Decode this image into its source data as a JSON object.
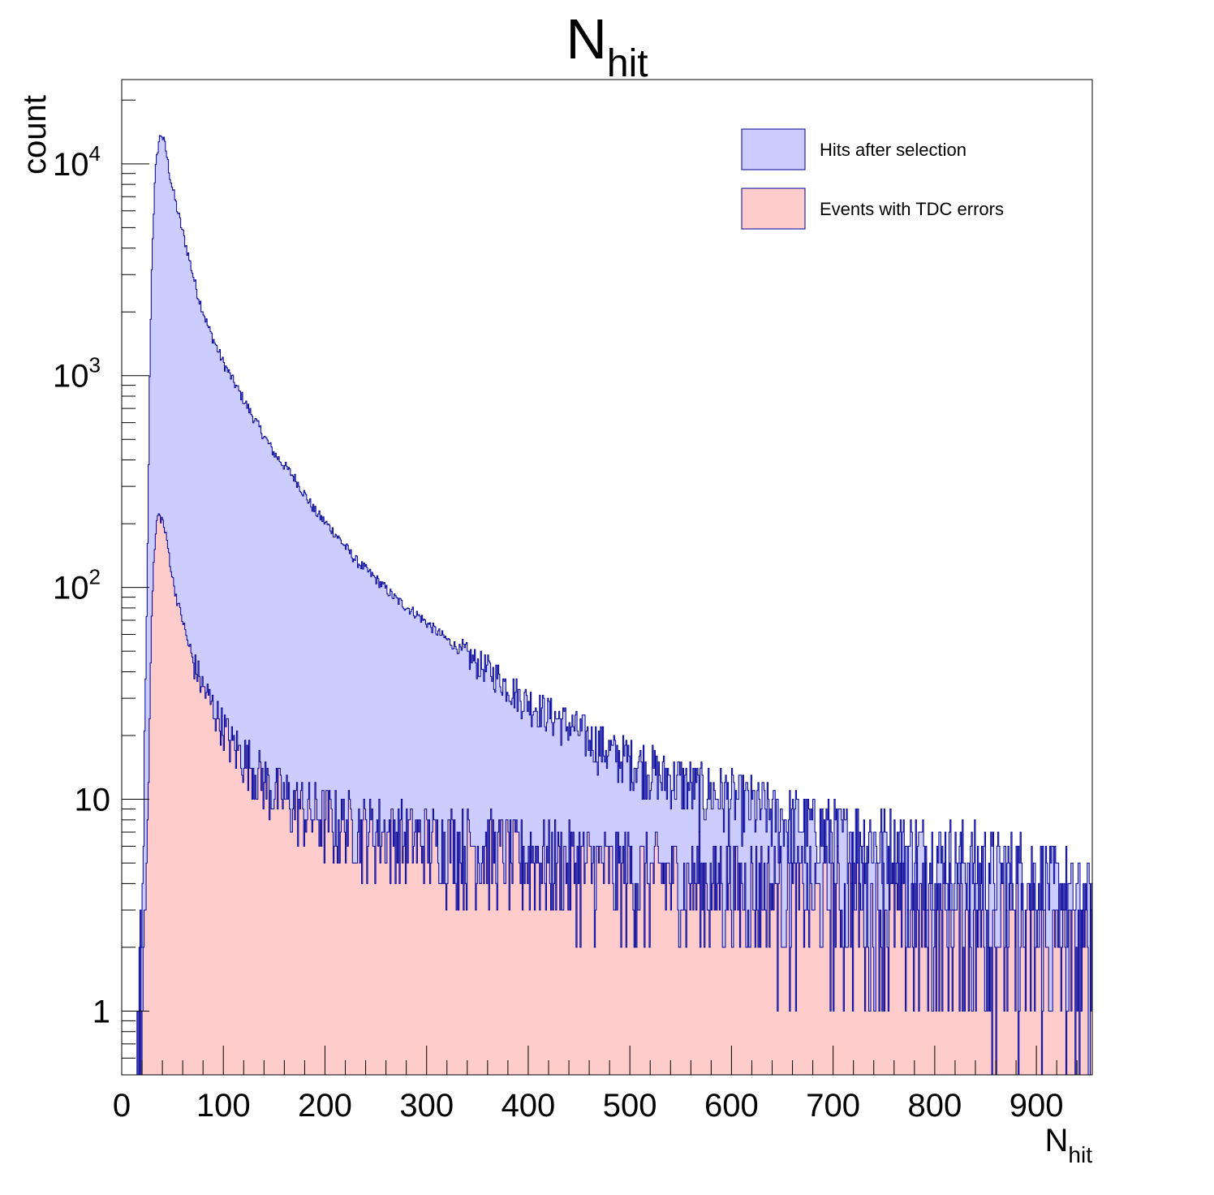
{
  "chart_data": {
    "type": "histogram",
    "title": {
      "main": "N",
      "sub": "hit"
    },
    "xlabel": {
      "main": "N",
      "sub": "hit"
    },
    "ylabel": "count",
    "xlim": [
      0,
      955
    ],
    "ylim": [
      0.5,
      25000
    ],
    "yscale": "log",
    "grid": false,
    "legend_position": "top-right",
    "x_ticks": [
      "0",
      "100",
      "200",
      "300",
      "400",
      "500",
      "600",
      "700",
      "800",
      "900"
    ],
    "y_ticks": [
      {
        "value": 1,
        "base": "1",
        "exp": ""
      },
      {
        "value": 10,
        "base": "10",
        "exp": ""
      },
      {
        "value": 100,
        "base": "10",
        "exp": "2"
      },
      {
        "value": 1000,
        "base": "10",
        "exp": "3"
      },
      {
        "value": 10000,
        "base": "10",
        "exp": "4"
      }
    ],
    "series": [
      {
        "name": "Hits after selection",
        "fill": "#ccccff",
        "line": "#000099",
        "points": [
          [
            15,
            0.5
          ],
          [
            17,
            1
          ],
          [
            20,
            2
          ],
          [
            22,
            12
          ],
          [
            25,
            100
          ],
          [
            28,
            1500
          ],
          [
            30,
            4000
          ],
          [
            33,
            9000
          ],
          [
            36,
            12500
          ],
          [
            39,
            14000
          ],
          [
            43,
            12000
          ],
          [
            48,
            8500
          ],
          [
            55,
            6000
          ],
          [
            65,
            3800
          ],
          [
            75,
            2400
          ],
          [
            85,
            1700
          ],
          [
            100,
            1150
          ],
          [
            115,
            850
          ],
          [
            130,
            630
          ],
          [
            150,
            430
          ],
          [
            170,
            330
          ],
          [
            190,
            230
          ],
          [
            210,
            180
          ],
          [
            230,
            135
          ],
          [
            250,
            110
          ],
          [
            270,
            88
          ],
          [
            290,
            75
          ],
          [
            310,
            62
          ],
          [
            330,
            52
          ],
          [
            350,
            44
          ],
          [
            370,
            38
          ],
          [
            390,
            31
          ],
          [
            410,
            27
          ],
          [
            430,
            24
          ],
          [
            450,
            21
          ],
          [
            470,
            18
          ],
          [
            490,
            16
          ],
          [
            510,
            15
          ],
          [
            530,
            13
          ],
          [
            550,
            12
          ],
          [
            570,
            11
          ],
          [
            600,
            10
          ],
          [
            630,
            9
          ],
          [
            660,
            8
          ],
          [
            700,
            7
          ],
          [
            740,
            6.5
          ],
          [
            780,
            5.8
          ],
          [
            820,
            5.2
          ],
          [
            860,
            4.7
          ],
          [
            900,
            4.2
          ],
          [
            930,
            3.5
          ],
          [
            955,
            3
          ]
        ]
      },
      {
        "name": "Events with TDC errors",
        "fill": "#ffcccc",
        "line": "#000099",
        "points": [
          [
            18,
            0.5
          ],
          [
            22,
            2
          ],
          [
            25,
            6
          ],
          [
            28,
            40
          ],
          [
            31,
            120
          ],
          [
            35,
            220
          ],
          [
            40,
            210
          ],
          [
            45,
            160
          ],
          [
            50,
            110
          ],
          [
            55,
            85
          ],
          [
            60,
            70
          ],
          [
            65,
            55
          ],
          [
            70,
            45
          ],
          [
            80,
            34
          ],
          [
            90,
            27
          ],
          [
            100,
            22
          ],
          [
            110,
            18
          ],
          [
            125,
            15
          ],
          [
            140,
            12
          ],
          [
            160,
            10
          ],
          [
            180,
            9
          ],
          [
            200,
            8
          ],
          [
            230,
            7.5
          ],
          [
            260,
            7
          ],
          [
            300,
            6.5
          ],
          [
            350,
            6
          ],
          [
            400,
            5.5
          ],
          [
            450,
            5
          ],
          [
            500,
            4.6
          ],
          [
            550,
            4.3
          ],
          [
            600,
            4
          ],
          [
            650,
            3.7
          ],
          [
            700,
            3.4
          ],
          [
            750,
            3
          ],
          [
            800,
            2.8
          ],
          [
            850,
            2.5
          ],
          [
            900,
            2.2
          ],
          [
            955,
            1.5
          ]
        ]
      }
    ]
  }
}
